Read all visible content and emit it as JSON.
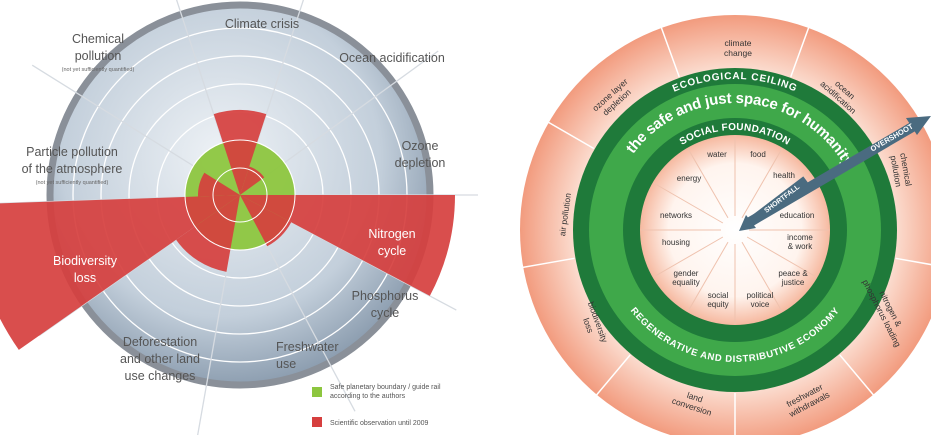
{
  "left": {
    "boundaries": [
      {
        "lines": [
          "Climate crisis"
        ]
      },
      {
        "lines": [
          "Ocean acidification"
        ]
      },
      {
        "lines": [
          "Ozone",
          "depletion"
        ]
      },
      {
        "lines": [
          "Nitrogen",
          "cycle"
        ]
      },
      {
        "lines": [
          "Phosphorus",
          "cycle"
        ]
      },
      {
        "lines": [
          "Deforestation",
          "and other land",
          "use changes"
        ]
      },
      {
        "lines": [
          "Freshwater",
          "use"
        ]
      },
      {
        "lines": [
          "Biodiversity",
          "loss"
        ]
      },
      {
        "lines": [
          "Particle pollution",
          "of the atmosphere"
        ],
        "note": "(not yet sufficiently quantified)"
      },
      {
        "lines": [
          "Chemical",
          "pollution"
        ],
        "note": "(not yet sufficiently quantified)"
      }
    ],
    "legend": [
      {
        "lines": [
          "Safe planetary boundary / guide rail",
          "according to the authors"
        ]
      },
      {
        "lines": [
          "Scientific observation until 2009"
        ]
      }
    ]
  },
  "right": {
    "ecological_ceiling": "ECOLOGICAL CEILING",
    "safe_space": "the safe and just space for humanity",
    "social_foundation": "SOCIAL FOUNDATION",
    "economy": "REGENERATIVE AND DISTRIBUTIVE ECONOMY",
    "overshoot": "OVERSHOOT",
    "shortfall": "SHORTFALL",
    "outer_labels": [
      {
        "lines": [
          "climate",
          "change"
        ]
      },
      {
        "lines": [
          "ocean",
          "acidification"
        ]
      },
      {
        "lines": [
          "chemical",
          "pollution"
        ]
      },
      {
        "lines": [
          "nitrogen &",
          "phosphorus loading"
        ]
      },
      {
        "lines": [
          "freshwater",
          "withdrawals"
        ]
      },
      {
        "lines": [
          "land",
          "conversion"
        ]
      },
      {
        "lines": [
          "biodiversity",
          "loss"
        ]
      },
      {
        "lines": [
          "air pollution"
        ]
      },
      {
        "lines": [
          "ozone layer",
          "depletion"
        ]
      }
    ],
    "inner_labels": [
      {
        "lines": [
          "water"
        ]
      },
      {
        "lines": [
          "food"
        ]
      },
      {
        "lines": [
          "health"
        ]
      },
      {
        "lines": [
          "education"
        ]
      },
      {
        "lines": [
          "income",
          "& work"
        ]
      },
      {
        "lines": [
          "peace &",
          "justice"
        ]
      },
      {
        "lines": [
          "political",
          "voice"
        ]
      },
      {
        "lines": [
          "social",
          "equity"
        ]
      },
      {
        "lines": [
          "gender",
          "equality"
        ]
      },
      {
        "lines": [
          "housing"
        ]
      },
      {
        "lines": [
          "networks"
        ]
      },
      {
        "lines": [
          "energy"
        ]
      }
    ]
  }
}
